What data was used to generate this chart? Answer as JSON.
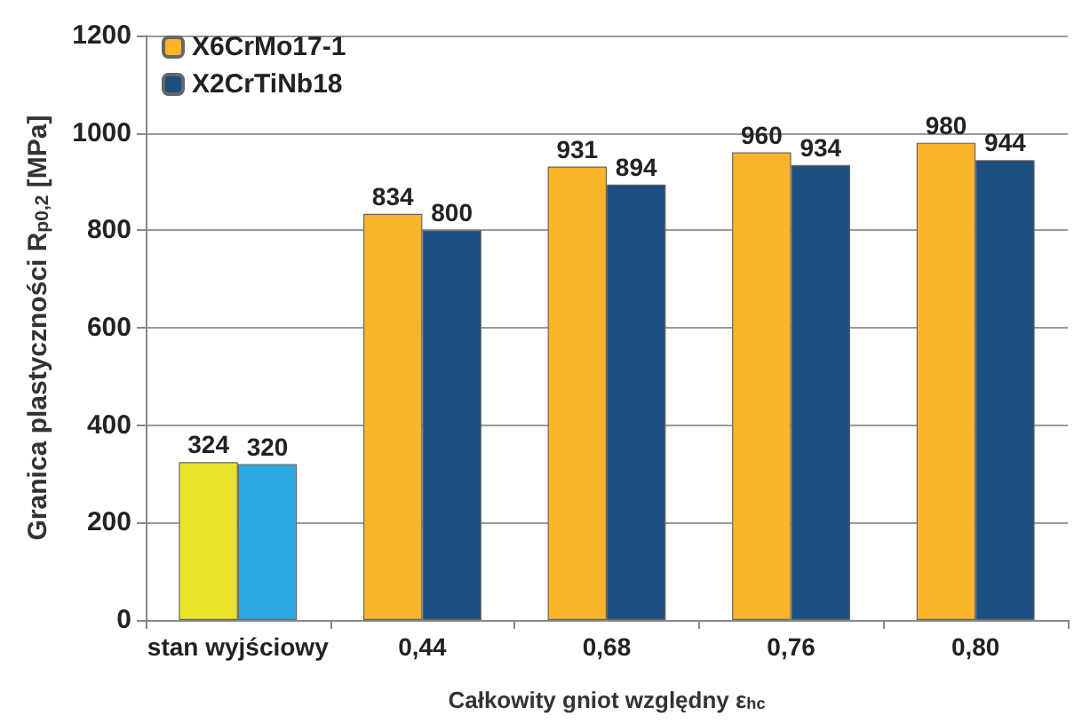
{
  "chart_data": {
    "type": "bar",
    "xlabel": "Całkowity gniot względny ε$_{hc}$",
    "ylabel": "Granica plastyczności R$_{p0,2}$ [MPa]",
    "categories": [
      "stan wyjściowy",
      "0,44",
      "0,68",
      "0,76",
      "0,80"
    ],
    "series": [
      {
        "name": "X6CrMo17-1",
        "color": "#fbb52b",
        "colors": [
          "#e8e42a",
          "#fbb52b",
          "#fbb52b",
          "#fbb52b",
          "#fbb52b"
        ],
        "values": [
          324,
          834,
          931,
          960,
          980
        ]
      },
      {
        "name": "X2CrTiNb18",
        "color": "#1b4f7f",
        "colors": [
          "#2aa9e0",
          "#1b4f7f",
          "#1b4f7f",
          "#1b4f7f",
          "#1b4f7f"
        ],
        "values": [
          320,
          800,
          894,
          934,
          944
        ]
      }
    ],
    "ylim": [
      0,
      1200
    ],
    "yticks": [
      0,
      200,
      400,
      600,
      800,
      1000,
      1200
    ],
    "grid": "y",
    "legend": "top left",
    "data_labels": true
  }
}
